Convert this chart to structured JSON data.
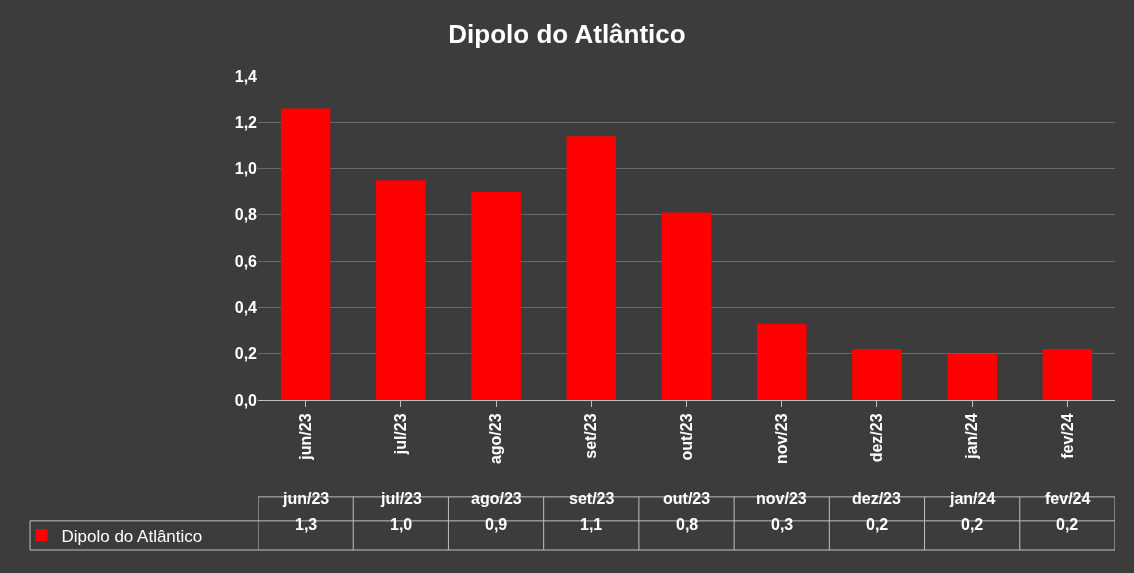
{
  "chart_data": {
    "type": "bar",
    "title": "Dipolo do Atlântico",
    "categories": [
      "jun/23",
      "jul/23",
      "ago/23",
      "set/23",
      "out/23",
      "nov/23",
      "dez/23",
      "jan/24",
      "fev/24"
    ],
    "series": [
      {
        "name": "Dipolo do Atlântico",
        "color": "#ff0000",
        "values": [
          1.26,
          0.95,
          0.9,
          1.14,
          0.81,
          0.33,
          0.22,
          0.2,
          0.22
        ],
        "value_labels": [
          "1,3",
          "1,0",
          "0,9",
          "1,1",
          "0,8",
          "0,3",
          "0,2",
          "0,2",
          "0,2"
        ]
      }
    ],
    "ylim": [
      0,
      1.4
    ],
    "yticks": [
      {
        "value": 0,
        "label": "0,0"
      },
      {
        "value": 0.2,
        "label": "0,2"
      },
      {
        "value": 0.4,
        "label": "0,4"
      },
      {
        "value": 0.6,
        "label": "0,6"
      },
      {
        "value": 0.8,
        "label": "0,8"
      },
      {
        "value": 1.0,
        "label": "1,0"
      },
      {
        "value": 1.2,
        "label": "1,2"
      },
      {
        "value": 1.4,
        "label": "1,4"
      }
    ],
    "grid": "y",
    "legend": "bottom left"
  }
}
